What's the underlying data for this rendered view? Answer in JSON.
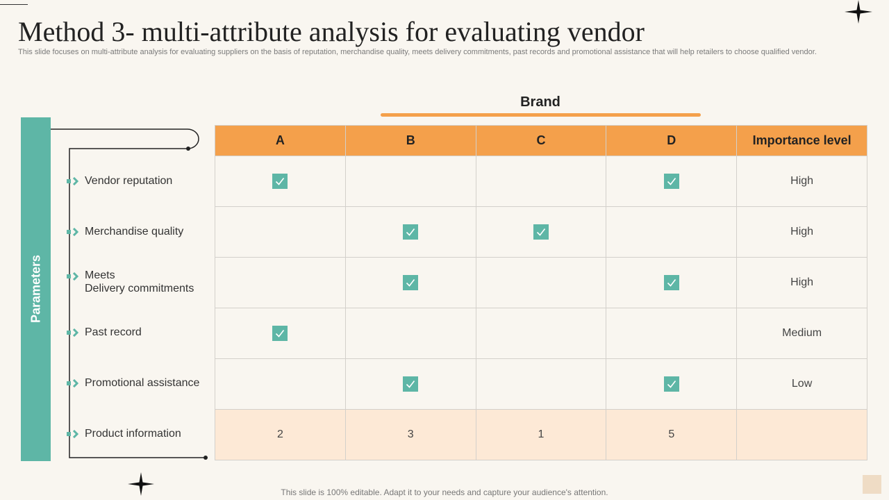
{
  "title": "Method 3- multi-attribute analysis for evaluating vendor",
  "subtitle": "This slide focuses on multi-attribute analysis for evaluating suppliers on the basis of reputation, merchandise quality, meets delivery commitments, past records and promotional assistance that will help retailers to choose qualified vendor.",
  "brand_label": "Brand",
  "parameters_label": "Parameters",
  "columns": [
    "A",
    "B",
    "C",
    "D",
    "Importance level"
  ],
  "rows": [
    {
      "label": "Vendor reputation",
      "checks": [
        true,
        false,
        false,
        true
      ],
      "importance": "High"
    },
    {
      "label": "Merchandise quality",
      "checks": [
        false,
        true,
        true,
        false
      ],
      "importance": "High"
    },
    {
      "label": "Meets\nDelivery commitments",
      "checks": [
        false,
        true,
        false,
        true
      ],
      "importance": "High"
    },
    {
      "label": "Past record",
      "checks": [
        true,
        false,
        false,
        false
      ],
      "importance": "Medium"
    },
    {
      "label": "Promotional assistance",
      "checks": [
        false,
        true,
        false,
        true
      ],
      "importance": "Low"
    }
  ],
  "product_row": {
    "label": "Product information",
    "values": [
      "2",
      "3",
      "1",
      "5"
    ],
    "importance": ""
  },
  "footer": "This slide is 100% editable. Adapt it to your needs and capture your audience's attention.",
  "colors": {
    "accent": "#f4a04b",
    "teal": "#5eb6a6",
    "highlight_row": "#fde9d6",
    "background": "#f9f6f0"
  },
  "icons": {
    "check": "check-box-icon",
    "param_marker": "chevron-right-icon",
    "decor": "four-point-star-icon"
  }
}
